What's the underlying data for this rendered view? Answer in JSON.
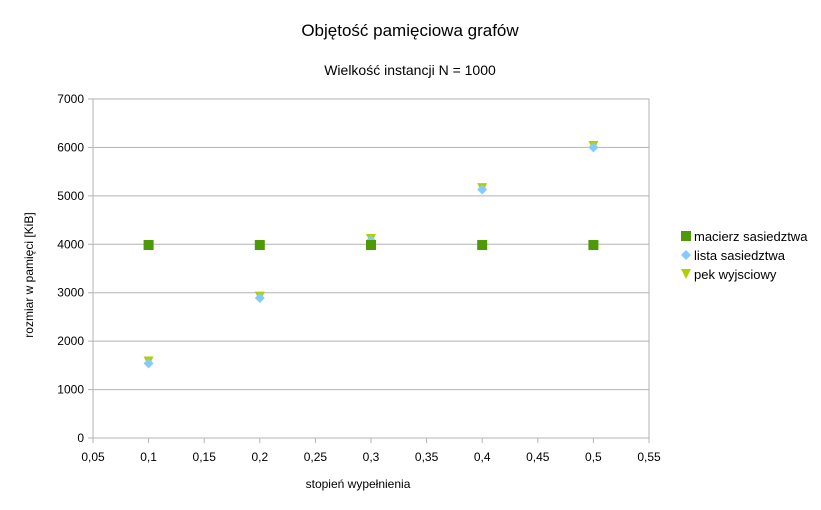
{
  "chart_data": {
    "type": "scatter",
    "title": "Objętość pamięciowa grafów",
    "subtitle": "Wielkość instancji N = 1000",
    "xlabel": "stopień wypełnienia",
    "ylabel": "rozmiar w pamięci [KiB]",
    "xlim": [
      0.05,
      0.55
    ],
    "ylim": [
      0,
      7000
    ],
    "xticks": [
      "0,05",
      "0,1",
      "0,15",
      "0,2",
      "0,25",
      "0,3",
      "0,35",
      "0,4",
      "0,45",
      "0,5",
      "0,55"
    ],
    "yticks": [
      "0",
      "1000",
      "2000",
      "3000",
      "4000",
      "5000",
      "6000",
      "7000"
    ],
    "grid": "horizontal",
    "legend_position": "right",
    "series": [
      {
        "name": "macierz sasiedztwa",
        "color": "#4e9a06",
        "marker": "square",
        "x": [
          0.1,
          0.2,
          0.3,
          0.4,
          0.5
        ],
        "y": [
          3985,
          3985,
          3985,
          3985,
          3985
        ]
      },
      {
        "name": "lista sasiedztwa",
        "color": "#83caff",
        "marker": "diamond",
        "x": [
          0.1,
          0.2,
          0.3,
          0.4,
          0.5
        ],
        "y": [
          1540,
          2890,
          4080,
          5130,
          6000
        ]
      },
      {
        "name": "pek wyjsciowy",
        "color": "#aecf00",
        "marker": "triangle-down",
        "x": [
          0.1,
          0.2,
          0.3,
          0.4,
          0.5
        ],
        "y": [
          1580,
          2920,
          4110,
          5160,
          6030
        ]
      }
    ]
  }
}
